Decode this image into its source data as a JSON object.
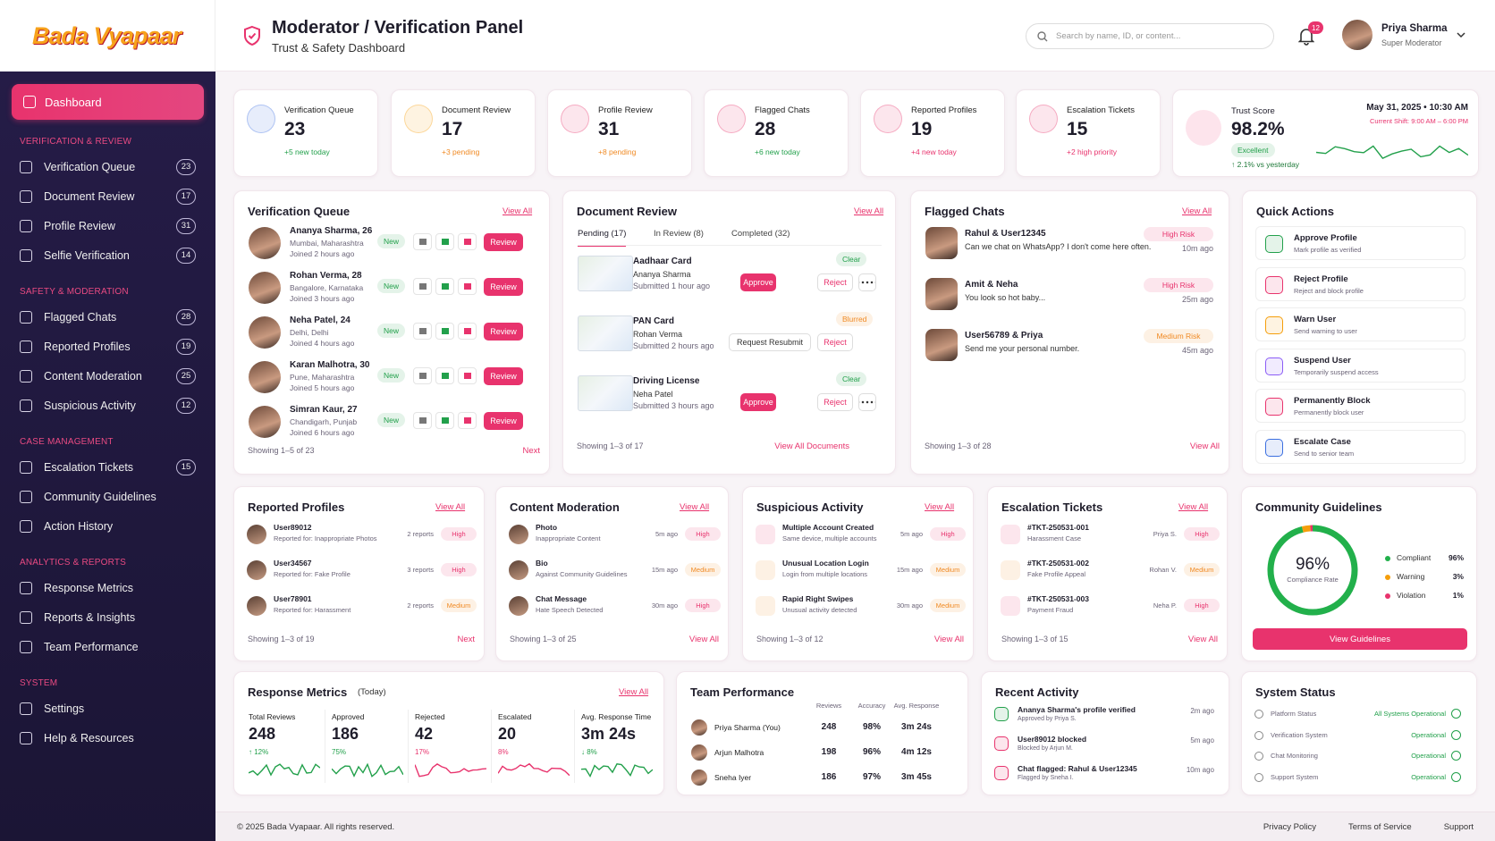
{
  "brand": {
    "logo": "Bada Vyapaar"
  },
  "header": {
    "title": "Moderator / Verification Panel",
    "subtitle": "Trust & Safety Dashboard",
    "search_placeholder": "Search by name, ID, or content...",
    "notifications": 12,
    "user": {
      "name": "Priya Sharma",
      "role": "Super Moderator"
    }
  },
  "sidebar": {
    "active": "Dashboard",
    "sections": [
      {
        "title": "VERIFICATION & REVIEW",
        "items": [
          {
            "label": "Verification Queue",
            "count": 23
          },
          {
            "label": "Document Review",
            "count": 17
          },
          {
            "label": "Profile Review",
            "count": 31
          },
          {
            "label": "Selfie Verification",
            "count": 14
          }
        ]
      },
      {
        "title": "SAFETY & MODERATION",
        "items": [
          {
            "label": "Flagged Chats",
            "count": 28
          },
          {
            "label": "Reported Profiles",
            "count": 19
          },
          {
            "label": "Content Moderation",
            "count": 25
          },
          {
            "label": "Suspicious Activity",
            "count": 12
          }
        ]
      },
      {
        "title": "CASE MANAGEMENT",
        "items": [
          {
            "label": "Escalation Tickets",
            "count": 15
          },
          {
            "label": "Community Guidelines"
          },
          {
            "label": "Action History"
          }
        ]
      },
      {
        "title": "ANALYTICS & REPORTS",
        "items": [
          {
            "label": "Response Metrics"
          },
          {
            "label": "Reports & Insights"
          },
          {
            "label": "Team Performance"
          }
        ]
      },
      {
        "title": "SYSTEM",
        "items": [
          {
            "label": "Settings"
          },
          {
            "label": "Help & Resources"
          }
        ]
      }
    ]
  },
  "stats": [
    {
      "label": "Verification Queue",
      "value": 23,
      "note": "+5 new today",
      "color": "#3b6fe0",
      "note_color": "#22a04b"
    },
    {
      "label": "Document Review",
      "value": 17,
      "note": "+3 pending",
      "color": "#f59e0b",
      "note_color": "#f08a24"
    },
    {
      "label": "Profile Review",
      "value": 31,
      "note": "+8 pending",
      "color": "#e8336d",
      "note_color": "#f08a24"
    },
    {
      "label": "Flagged Chats",
      "value": 28,
      "note": "+6 new today",
      "color": "#e8336d",
      "note_color": "#22a04b"
    },
    {
      "label": "Reported Profiles",
      "value": 19,
      "note": "+4 new today",
      "color": "#e8336d",
      "note_color": "#e8336d"
    },
    {
      "label": "Escalation Tickets",
      "value": 15,
      "note": "+2 high priority",
      "color": "#e8336d",
      "note_color": "#e8336d"
    }
  ],
  "trust": {
    "label": "Trust Score",
    "value": "98.2%",
    "status": "Excellent",
    "change": "↑ 2.1% vs yesterday",
    "date": "May 31, 2025 • 10:30 AM",
    "shift": "Current Shift: 9:00 AM – 6:00 PM"
  },
  "verification_queue": {
    "title": "Verification Queue",
    "view_all": "View All",
    "footer": "Showing 1–5 of 23",
    "next": "Next",
    "rows": [
      {
        "name": "Ananya Sharma, 26",
        "location": "Mumbai, Maharashtra",
        "joined": "Joined 2 hours ago",
        "badge": "New",
        "action": "Review"
      },
      {
        "name": "Rohan Verma, 28",
        "location": "Bangalore, Karnataka",
        "joined": "Joined 3 hours ago",
        "badge": "New",
        "action": "Review"
      },
      {
        "name": "Neha Patel, 24",
        "location": "Delhi, Delhi",
        "joined": "Joined 4 hours ago",
        "badge": "New",
        "action": "Review"
      },
      {
        "name": "Karan Malhotra, 30",
        "location": "Pune, Maharashtra",
        "joined": "Joined 5 hours ago",
        "badge": "New",
        "action": "Review"
      },
      {
        "name": "Simran Kaur, 27",
        "location": "Chandigarh, Punjab",
        "joined": "Joined 6 hours ago",
        "badge": "New",
        "action": "Review"
      }
    ]
  },
  "document_review": {
    "title": "Document Review",
    "view_all": "View All",
    "tabs": [
      "Pending (17)",
      "In Review (8)",
      "Completed (32)"
    ],
    "footer": "Showing 1–3 of 17",
    "footer_link": "View All Documents",
    "items": [
      {
        "title": "Aadhaar Card",
        "name": "Ananya Sharma",
        "submitted": "Submitted 1 hour ago",
        "status": "Clear",
        "status_color": "#22a04b",
        "actions": [
          "Approve",
          "Reject"
        ]
      },
      {
        "title": "PAN Card",
        "name": "Rohan Verma",
        "submitted": "Submitted 2 hours ago",
        "status": "Blurred",
        "status_color": "#f08a24",
        "actions": [
          "Request Resubmit",
          "Reject"
        ]
      },
      {
        "title": "Driving License",
        "name": "Neha Patel",
        "submitted": "Submitted 3 hours ago",
        "status": "Clear",
        "status_color": "#22a04b",
        "actions": [
          "Approve",
          "Reject"
        ]
      }
    ]
  },
  "flagged_chats": {
    "title": "Flagged Chats",
    "view_all": "View All",
    "footer": "Showing 1–3 of 28",
    "footer_link": "View All",
    "items": [
      {
        "names": "Rahul & User12345",
        "message": "Can we chat on WhatsApp? I don't come here often.",
        "risk": "High Risk",
        "risk_color": "#e8336d",
        "time": "10m ago"
      },
      {
        "names": "Amit & Neha",
        "message": "You look so hot baby...",
        "risk": "High Risk",
        "risk_color": "#e8336d",
        "time": "25m ago"
      },
      {
        "names": "User56789 & Priya",
        "message": "Send me your personal number.",
        "risk": "Medium Risk",
        "risk_color": "#f08a24",
        "time": "45m ago"
      }
    ]
  },
  "quick_actions": {
    "title": "Quick Actions",
    "items": [
      {
        "title": "Approve Profile",
        "desc": "Mark profile as verified",
        "color": "#22a04b"
      },
      {
        "title": "Reject Profile",
        "desc": "Reject and block profile",
        "color": "#e8336d"
      },
      {
        "title": "Warn User",
        "desc": "Send warning to user",
        "color": "#f59e0b"
      },
      {
        "title": "Suspend User",
        "desc": "Temporarily suspend access",
        "color": "#8b5cf6"
      },
      {
        "title": "Permanently Block",
        "desc": "Permanently block user",
        "color": "#e8336d"
      },
      {
        "title": "Escalate Case",
        "desc": "Send to senior team",
        "color": "#3b6fe0"
      }
    ]
  },
  "reported_profiles": {
    "title": "Reported Profiles",
    "view_all": "View All",
    "footer": "Showing 1–3 of 19",
    "footer_link": "Next",
    "items": [
      {
        "title": "User89012",
        "sub": "Reported for: Inappropriate Photos",
        "meta": "2 reports",
        "level": "High",
        "level_color": "#e8336d"
      },
      {
        "title": "User34567",
        "sub": "Reported for: Fake Profile",
        "meta": "3 reports",
        "level": "High",
        "level_color": "#e8336d"
      },
      {
        "title": "User78901",
        "sub": "Reported for: Harassment",
        "meta": "2 reports",
        "level": "Medium",
        "level_color": "#f08a24"
      }
    ]
  },
  "content_moderation": {
    "title": "Content Moderation",
    "view_all": "View All",
    "footer": "Showing 1–3 of 25",
    "footer_link": "View All",
    "items": [
      {
        "title": "Photo",
        "sub": "Inappropriate Content",
        "meta": "5m ago",
        "level": "High",
        "level_color": "#e8336d"
      },
      {
        "title": "Bio",
        "sub": "Against Community Guidelines",
        "meta": "15m ago",
        "level": "Medium",
        "level_color": "#f08a24"
      },
      {
        "title": "Chat Message",
        "sub": "Hate Speech Detected",
        "meta": "30m ago",
        "level": "High",
        "level_color": "#e8336d"
      }
    ]
  },
  "suspicious_activity": {
    "title": "Suspicious Activity",
    "view_all": "View All",
    "footer": "Showing 1–3 of 12",
    "footer_link": "View All",
    "items": [
      {
        "title": "Multiple Account Created",
        "sub": "Same device, multiple accounts",
        "meta": "5m ago",
        "level": "High",
        "level_color": "#e8336d"
      },
      {
        "title": "Unusual Location Login",
        "sub": "Login from multiple locations",
        "meta": "15m ago",
        "level": "Medium",
        "level_color": "#f08a24"
      },
      {
        "title": "Rapid Right Swipes",
        "sub": "Unusual activity detected",
        "meta": "30m ago",
        "level": "Medium",
        "level_color": "#f08a24"
      }
    ]
  },
  "escalation_tickets": {
    "title": "Escalation Tickets",
    "view_all": "View All",
    "footer": "Showing 1–3 of 15",
    "footer_link": "View All",
    "items": [
      {
        "title": "#TKT-250531-001",
        "sub": "Harassment Case",
        "meta": "Priya S.",
        "level": "High",
        "level_color": "#e8336d"
      },
      {
        "title": "#TKT-250531-002",
        "sub": "Fake Profile Appeal",
        "meta": "Rohan V.",
        "level": "Medium",
        "level_color": "#f08a24"
      },
      {
        "title": "#TKT-250531-003",
        "sub": "Payment Fraud",
        "meta": "Neha P.",
        "level": "High",
        "level_color": "#e8336d"
      }
    ]
  },
  "community_guidelines": {
    "title": "Community Guidelines",
    "center_label": "Compliance Rate",
    "button": "View Guidelines",
    "segments": [
      {
        "name": "Compliant",
        "value": 96,
        "label": "96%",
        "color": "#22b04b"
      },
      {
        "name": "Warning",
        "value": 3,
        "label": "3%",
        "color": "#f59e0b"
      },
      {
        "name": "Violation",
        "value": 1,
        "label": "1%",
        "color": "#e8336d"
      }
    ]
  },
  "response_metrics": {
    "title": "Response Metrics",
    "title_note": "(Today)",
    "view_all": "View All",
    "metrics": [
      {
        "label": "Total Reviews",
        "value": 248,
        "change": "↑ 12%",
        "color": "#22a04b"
      },
      {
        "label": "Approved",
        "value": 186,
        "change": "75%",
        "color": "#22a04b"
      },
      {
        "label": "Rejected",
        "value": 42,
        "change": "17%",
        "color": "#e8336d"
      },
      {
        "label": "Escalated",
        "value": 20,
        "change": "8%",
        "color": "#e8336d"
      },
      {
        "label": "Avg. Response Time",
        "value": "3m 24s",
        "change": "↓ 8%",
        "color": "#22a04b"
      }
    ]
  },
  "team_performance": {
    "title": "Team Performance",
    "columns": [
      "Reviews",
      "Accuracy",
      "Avg. Response"
    ],
    "rows": [
      [
        "Priya Sharma (You)",
        248,
        "98%",
        "3m 24s"
      ],
      [
        "Arjun Malhotra",
        198,
        "96%",
        "4m 12s"
      ],
      [
        "Sneha Iyer",
        186,
        "97%",
        "3m 45s"
      ]
    ]
  },
  "recent_activity": {
    "title": "Recent Activity",
    "items": [
      {
        "title": "Ananya Sharma's profile verified",
        "sub": "Approved by Priya S.",
        "time": "2m ago",
        "color": "#22a04b"
      },
      {
        "title": "User89012 blocked",
        "sub": "Blocked by Arjun M.",
        "time": "5m ago",
        "color": "#e8336d"
      },
      {
        "title": "Chat flagged: Rahul & User12345",
        "sub": "Flagged by Sneha I.",
        "time": "10m ago",
        "color": "#e8336d"
      }
    ]
  },
  "system_status": {
    "title": "System Status",
    "items": [
      {
        "name": "Platform Status",
        "status": "All Systems Operational"
      },
      {
        "name": "Verification System",
        "status": "Operational"
      },
      {
        "name": "Chat Monitoring",
        "status": "Operational"
      },
      {
        "name": "Support System",
        "status": "Operational"
      }
    ]
  },
  "footer": {
    "copyright": "© 2025 Bada Vyapaar. All rights reserved.",
    "links": [
      "Privacy Policy",
      "Terms of Service",
      "Support"
    ]
  }
}
